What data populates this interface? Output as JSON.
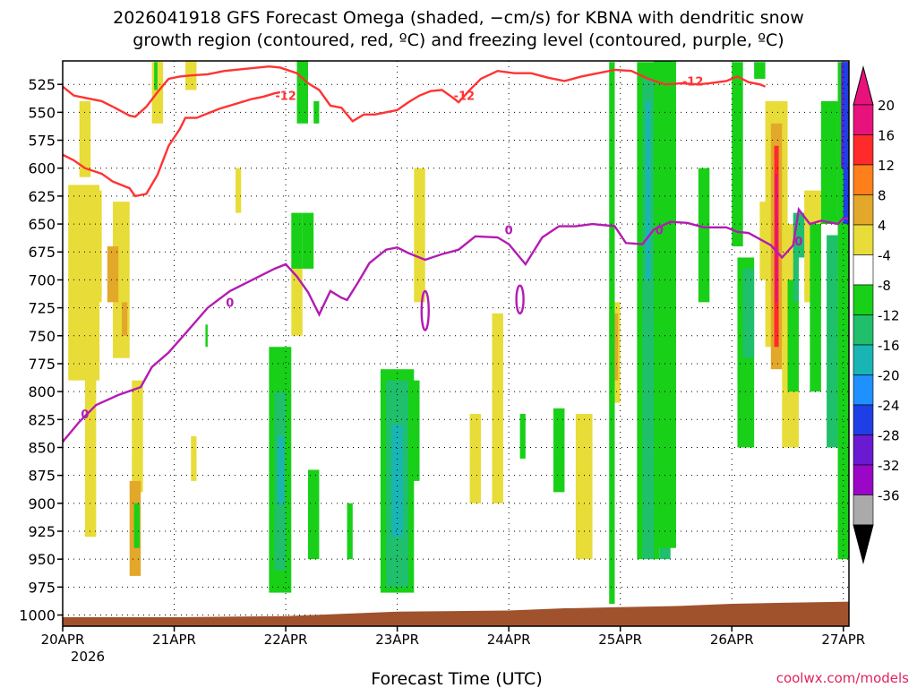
{
  "chart_data": {
    "type": "heatmap",
    "title_line1": "2026041918 GFS Forecast Omega (shaded, −cm/s) for KBNA with dendritic snow",
    "title_line2": "growth region (contoured, red, ºC) and freezing level (contoured, purple, ºC)",
    "xlabel": "Forecast Time (UTC)",
    "credit": "coolwx.com/models",
    "x_ticks": [
      "20APR",
      "21APR",
      "22APR",
      "23APR",
      "24APR",
      "25APR",
      "26APR",
      "27APR"
    ],
    "x_year": "2026",
    "x_range_days": [
      0.0,
      7.05
    ],
    "y_ticks": [
      "525",
      "550",
      "575",
      "600",
      "625",
      "650",
      "675",
      "700",
      "725",
      "750",
      "775",
      "800",
      "825",
      "850",
      "875",
      "900",
      "925",
      "950",
      "975",
      "1000"
    ],
    "y_range_hpa": [
      1010,
      504
    ],
    "colorbar_ticks": [
      "20",
      "16",
      "12",
      "8",
      "4",
      "-4",
      "-8",
      "-12",
      "-16",
      "-20",
      "-24",
      "-28",
      "-32",
      "-36"
    ],
    "colorbar_colors": [
      "#e8127d",
      "#ff2a2a",
      "#ff7f1a",
      "#e3a82a",
      "#e8dc38",
      "#ffffff",
      "#18d018",
      "#1fbf6c",
      "#19b5b5",
      "#1e90ff",
      "#1f3fe6",
      "#6a1ad1",
      "#9a07c7",
      "#aaaaaa"
    ],
    "colorbar_overflow_top": "#e8127d",
    "colorbar_overflow_bottom": "#000000",
    "contour_labels": {
      "dgz": "-12",
      "freezing": "0"
    },
    "series": [
      {
        "type": "line",
        "color": "#ff3333",
        "x": [
          0.0,
          0.1,
          0.2,
          0.35,
          0.45,
          0.6,
          0.65,
          0.75,
          0.85,
          0.95,
          1.05,
          1.15,
          1.3,
          1.45,
          1.55,
          1.65,
          1.75,
          1.85,
          1.95,
          2.1,
          2.2,
          2.3,
          2.4,
          2.5,
          2.6,
          2.7,
          2.8,
          2.9,
          3.0,
          3.1,
          3.2,
          3.3,
          3.4,
          3.5,
          3.55,
          3.65,
          3.75,
          3.9,
          4.05,
          4.2,
          4.35,
          4.5,
          4.65,
          4.8,
          4.95,
          5.1,
          5.25,
          5.4,
          5.55,
          5.7,
          5.8,
          5.95,
          6.05,
          6.15,
          6.25,
          6.3
        ],
        "y": [
          527,
          535,
          537,
          540,
          545,
          553,
          554,
          545,
          532,
          520,
          518,
          517,
          516,
          513,
          512,
          511,
          510,
          509,
          510,
          515,
          524,
          530,
          544,
          546,
          558,
          552,
          552,
          550,
          548,
          541,
          535,
          531,
          530,
          537,
          541,
          530,
          520,
          513,
          515,
          515,
          519,
          522,
          518,
          515,
          512,
          513,
          520,
          525,
          524,
          525,
          524,
          522,
          518,
          523,
          525,
          527
        ]
      },
      {
        "type": "line",
        "color": "#ff3333",
        "x": [
          0.0,
          0.1,
          0.2,
          0.35,
          0.45,
          0.6,
          0.65,
          0.75,
          0.85,
          0.95,
          1.05,
          1.1,
          1.2,
          1.3,
          1.4,
          1.5,
          1.6,
          1.7,
          1.8,
          1.9,
          1.95
        ],
        "y": [
          588,
          593,
          600,
          605,
          612,
          618,
          625,
          623,
          606,
          580,
          565,
          555,
          555,
          551,
          547,
          544,
          541,
          538,
          536,
          533,
          532
        ]
      },
      {
        "type": "line",
        "color": "#b31bb3",
        "x": [
          0.0,
          0.15,
          0.3,
          0.5,
          0.7,
          0.8,
          0.95,
          1.1,
          1.3,
          1.5,
          1.7,
          1.9,
          2.0,
          2.1,
          2.2,
          2.3,
          2.4,
          2.5,
          2.55,
          2.65,
          2.75,
          2.9,
          3.0,
          3.1,
          3.25,
          3.4,
          3.55,
          3.7,
          3.9,
          4.0,
          4.15,
          4.3,
          4.45,
          4.6,
          4.75,
          4.95,
          5.05,
          5.2,
          5.3,
          5.45,
          5.6,
          5.75,
          5.95,
          6.05,
          6.15,
          6.35,
          6.45,
          6.55,
          6.6,
          6.7,
          6.8,
          6.95,
          7.0,
          7.05
        ],
        "y": [
          845,
          827,
          812,
          803,
          796,
          778,
          765,
          748,
          725,
          710,
          700,
          690,
          686,
          697,
          711,
          731,
          710,
          716,
          718,
          702,
          685,
          673,
          671,
          676,
          682,
          677,
          673,
          661,
          662,
          668,
          686,
          662,
          652,
          652,
          650,
          652,
          667,
          668,
          655,
          648,
          649,
          653,
          653,
          657,
          658,
          669,
          680,
          669,
          637,
          650,
          647,
          650,
          645,
          645
        ]
      }
    ]
  }
}
